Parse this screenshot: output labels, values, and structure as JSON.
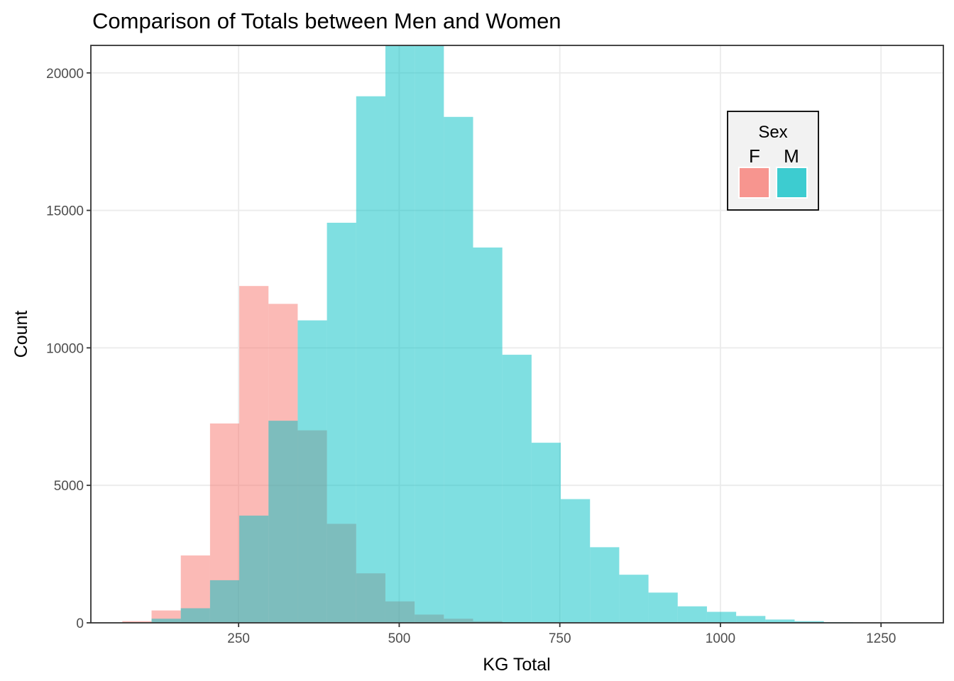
{
  "chart_data": {
    "type": "histogram",
    "title": "Comparison of Totals between Men and Women",
    "xlabel": "KG Total",
    "ylabel": "Count",
    "xlim": [
      20,
      1347
    ],
    "ylim": [
      0,
      21000
    ],
    "x_ticks": [
      250,
      500,
      750,
      1000,
      1250
    ],
    "y_ticks": [
      0,
      5000,
      10000,
      15000,
      20000
    ],
    "bin_width": 45.5,
    "grid": true,
    "legend": {
      "title": "Sex",
      "position": "inside-top-right",
      "entries": [
        "F",
        "M"
      ]
    },
    "colors": {
      "F": "#F8766D",
      "M": "#00BFC4"
    },
    "opacity": 0.5,
    "series": [
      {
        "name": "F",
        "bins": [
          {
            "x0": 69,
            "x1": 114.5,
            "count": 60
          },
          {
            "x0": 114.5,
            "x1": 160,
            "count": 450
          },
          {
            "x0": 160,
            "x1": 205.5,
            "count": 2450
          },
          {
            "x0": 205.5,
            "x1": 251,
            "count": 7250
          },
          {
            "x0": 251,
            "x1": 296.5,
            "count": 12250
          },
          {
            "x0": 296.5,
            "x1": 342,
            "count": 11600
          },
          {
            "x0": 342,
            "x1": 387.5,
            "count": 7000
          },
          {
            "x0": 387.5,
            "x1": 433,
            "count": 3600
          },
          {
            "x0": 433,
            "x1": 478.5,
            "count": 1800
          },
          {
            "x0": 478.5,
            "x1": 524,
            "count": 780
          },
          {
            "x0": 524,
            "x1": 569.5,
            "count": 300
          },
          {
            "x0": 569.5,
            "x1": 615,
            "count": 150
          },
          {
            "x0": 615,
            "x1": 660.5,
            "count": 60
          },
          {
            "x0": 660.5,
            "x1": 706,
            "count": 20
          }
        ]
      },
      {
        "name": "M",
        "bins": [
          {
            "x0": 114.5,
            "x1": 160,
            "count": 150
          },
          {
            "x0": 160,
            "x1": 205.5,
            "count": 530
          },
          {
            "x0": 205.5,
            "x1": 251,
            "count": 1550
          },
          {
            "x0": 251,
            "x1": 296.5,
            "count": 3900
          },
          {
            "x0": 296.5,
            "x1": 342,
            "count": 7350
          },
          {
            "x0": 342,
            "x1": 387.5,
            "count": 11000
          },
          {
            "x0": 387.5,
            "x1": 433,
            "count": 14550
          },
          {
            "x0": 433,
            "x1": 478.5,
            "count": 19150
          },
          {
            "x0": 478.5,
            "x1": 524,
            "count": 21000
          },
          {
            "x0": 524,
            "x1": 569.5,
            "count": 21000
          },
          {
            "x0": 569.5,
            "x1": 615,
            "count": 18400
          },
          {
            "x0": 615,
            "x1": 660.5,
            "count": 13650
          },
          {
            "x0": 660.5,
            "x1": 706,
            "count": 9750
          },
          {
            "x0": 706,
            "x1": 751.5,
            "count": 6550
          },
          {
            "x0": 751.5,
            "x1": 797,
            "count": 4500
          },
          {
            "x0": 797,
            "x1": 842.5,
            "count": 2750
          },
          {
            "x0": 842.5,
            "x1": 888,
            "count": 1750
          },
          {
            "x0": 888,
            "x1": 933.5,
            "count": 1100
          },
          {
            "x0": 933.5,
            "x1": 979,
            "count": 600
          },
          {
            "x0": 979,
            "x1": 1024.5,
            "count": 400
          },
          {
            "x0": 1024.5,
            "x1": 1070,
            "count": 250
          },
          {
            "x0": 1070,
            "x1": 1115.5,
            "count": 120
          },
          {
            "x0": 1115.5,
            "x1": 1161,
            "count": 60
          },
          {
            "x0": 1161,
            "x1": 1206.5,
            "count": 25
          },
          {
            "x0": 1206.5,
            "x1": 1252,
            "count": 10
          }
        ]
      }
    ]
  }
}
